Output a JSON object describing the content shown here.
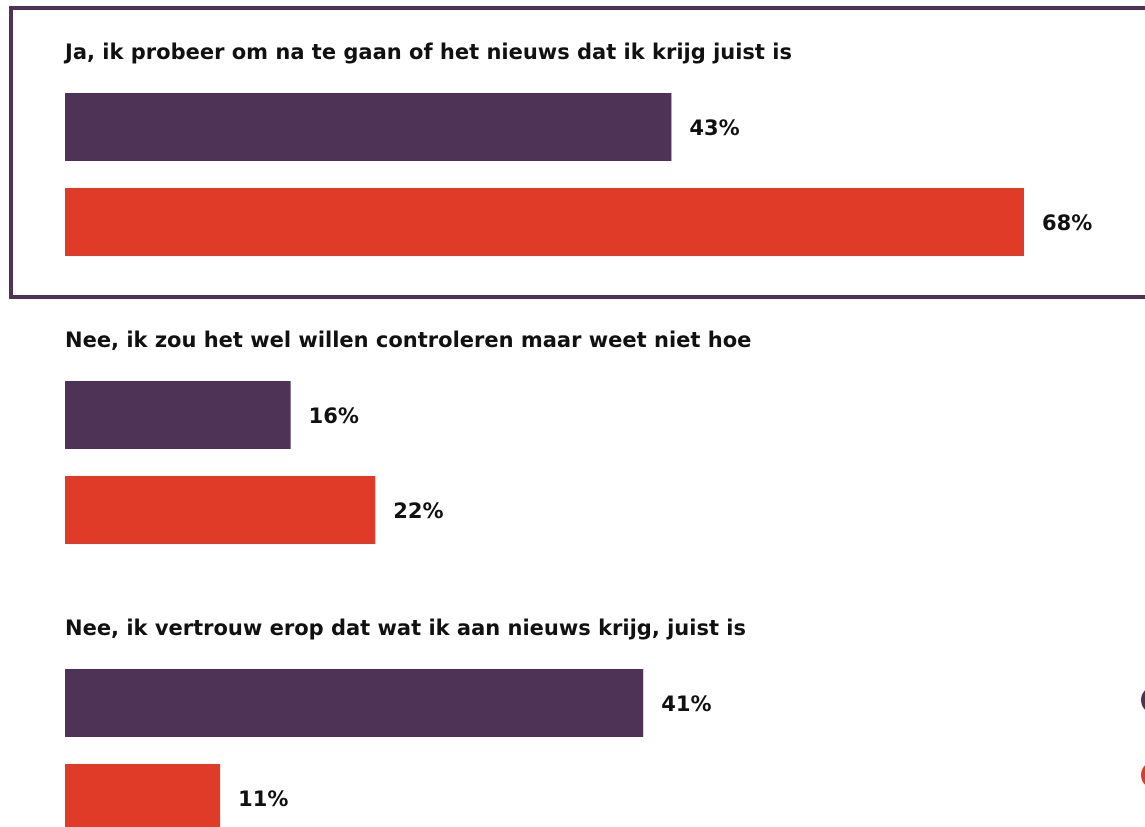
{
  "colors": {
    "series_1": "#4e3357",
    "series_2": "#e03a28",
    "highlight_border": "#4e3357",
    "text": "#111111"
  },
  "chart_data": {
    "type": "bar",
    "orientation": "horizontal",
    "title": "",
    "xlabel": "",
    "ylabel": "",
    "xlim": [
      0,
      68
    ],
    "grid": false,
    "legend": "right, partially visible",
    "value_suffix": "%",
    "categories": [
      "Ja, ik probeer om na te gaan of het nieuws dat ik krijg juist is",
      "Nee, ik zou het wel willen controleren maar weet niet hoe",
      "Nee, ik vertrouw erop dat wat ik aan nieuws krijg, juist is"
    ],
    "highlighted_category": 0,
    "series": [
      {
        "values": [
          43,
          16,
          41
        ]
      },
      {
        "values": [
          68,
          22,
          11
        ]
      }
    ]
  }
}
